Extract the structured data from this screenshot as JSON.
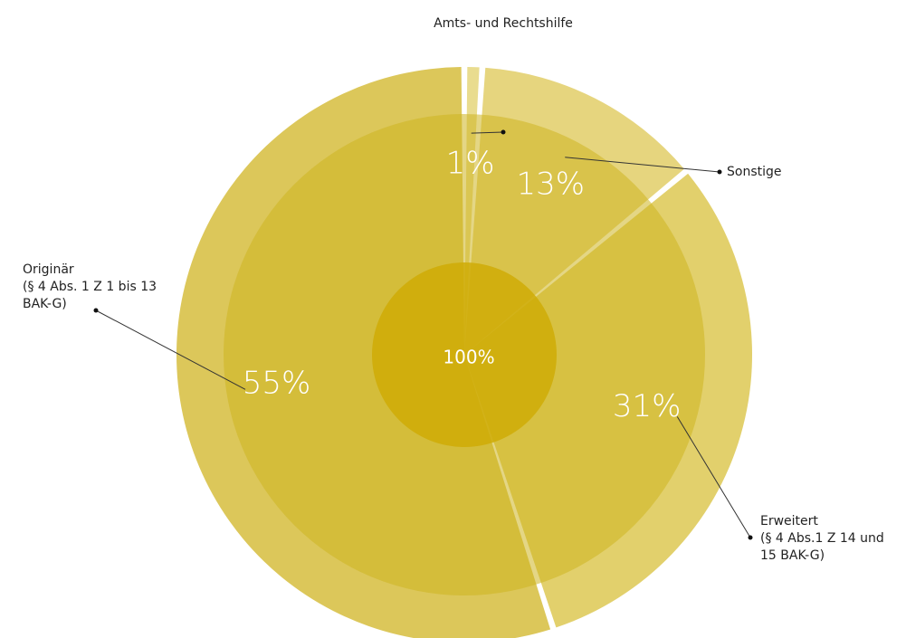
{
  "chart_data": {
    "type": "pie",
    "categories": [
      [
        "Amts- und Rechtshilfe"
      ],
      [
        "Sonstige"
      ],
      [
        "Erweitert",
        "(§ 4 Abs.1 Z 14 und",
        "15 BAK-G)"
      ],
      [
        "Originär",
        "(§ 4 Abs. 1 Z 1 bis 13",
        "BAK-G)"
      ]
    ],
    "values": [
      1,
      13,
      31,
      55
    ],
    "value_labels": [
      "1%",
      "13%",
      "31%",
      "55%"
    ],
    "colors": [
      "#e9dc8f",
      "#e6d57e",
      "#e2d06c",
      "#dcc75a"
    ],
    "center_label": "100%"
  }
}
